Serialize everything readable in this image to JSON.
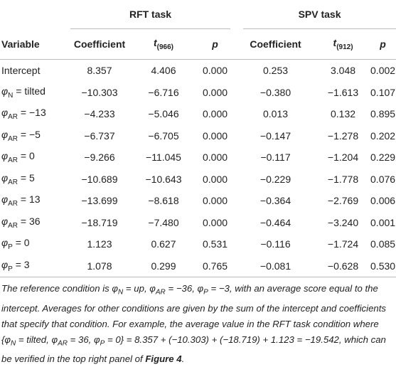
{
  "table": {
    "groups": [
      "RFT task",
      "SPV task"
    ],
    "columns": [
      "Variable",
      "Coefficient",
      {
        "main": "t",
        "sub": "(966)"
      },
      "p",
      "Coefficient",
      {
        "main": "t",
        "sub": "(912)"
      },
      "p"
    ],
    "rows": [
      [
        {
          "text": "Intercept"
        },
        "8.357",
        "4.406",
        "0.000",
        "0.253",
        "3.048",
        "0.002"
      ],
      [
        {
          "symbol": "φ",
          "sub": "N",
          "rest": " = tilted"
        },
        "−10.303",
        "−6.716",
        "0.000",
        "−0.380",
        "−1.613",
        "0.107"
      ],
      [
        {
          "symbol": "φ",
          "sub": "AR",
          "rest": " = −13"
        },
        "−4.233",
        "−5.046",
        "0.000",
        "0.013",
        "0.132",
        "0.895"
      ],
      [
        {
          "symbol": "φ",
          "sub": "AR",
          "rest": " = −5"
        },
        "−6.737",
        "−6.705",
        "0.000",
        "−0.147",
        "−1.278",
        "0.202"
      ],
      [
        {
          "symbol": "φ",
          "sub": "AR",
          "rest": " = 0"
        },
        "−9.266",
        "−11.045",
        "0.000",
        "−0.117",
        "−1.204",
        "0.229"
      ],
      [
        {
          "symbol": "φ",
          "sub": "AR",
          "rest": " = 5"
        },
        "−10.689",
        "−10.643",
        "0.000",
        "−0.229",
        "−1.778",
        "0.076"
      ],
      [
        {
          "symbol": "φ",
          "sub": "AR",
          "rest": " = 13"
        },
        "−13.699",
        "−8.618",
        "0.000",
        "−0.364",
        "−2.769",
        "0.006"
      ],
      [
        {
          "symbol": "φ",
          "sub": "AR",
          "rest": " = 36"
        },
        "−18.719",
        "−7.480",
        "0.000",
        "−0.464",
        "−3.240",
        "0.001"
      ],
      [
        {
          "symbol": "φ",
          "sub": "P",
          "rest": " = 0"
        },
        "1.123",
        "0.627",
        "0.531",
        "−0.116",
        "−1.724",
        "0.085"
      ],
      [
        {
          "symbol": "φ",
          "sub": "P",
          "rest": " = 3"
        },
        "1.078",
        "0.299",
        "0.765",
        "−0.081",
        "−0.628",
        "0.530"
      ]
    ]
  },
  "footnote": [
    "The reference condition is φ",
    "N",
    " = up, φ",
    "AR",
    " = −36, φ",
    "P",
    " = −3, with an average score equal to the intercept. Averages for other conditions are given by the sum of the intercept and coefficients that specify that condition. For example, the average value in the RFT task condition where {φ",
    "N",
    " = tilted, φ",
    "AR",
    " = 36, φ",
    "P",
    " = 0} = 8.357 + (−10.303) + (−18.719) + 1.123 = −19.542, which can be verified in the top right panel of ",
    "Figure 4",
    "."
  ]
}
